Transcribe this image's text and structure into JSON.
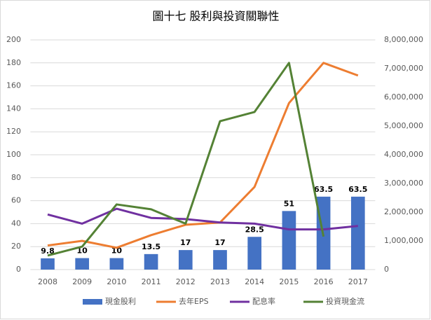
{
  "chart_data": {
    "type": "bar_line",
    "title": "圖十七  股利與投資關聯性",
    "categories": [
      "2008",
      "2009",
      "2010",
      "2011",
      "2012",
      "2013",
      "2014",
      "2015",
      "2016",
      "2017"
    ],
    "series": [
      {
        "name": "現金股利",
        "type": "bar",
        "color": "#4472c4",
        "values": [
          9.8,
          10,
          10,
          13.5,
          17,
          17,
          28.5,
          51,
          63.5,
          63.5
        ]
      },
      {
        "name": "去年EPS",
        "type": "line",
        "color": "#ed7d31",
        "values": [
          21,
          25,
          19,
          30,
          39,
          41,
          72,
          145,
          180,
          169
        ]
      },
      {
        "name": "配息率",
        "type": "line",
        "color": "#7030a0",
        "values": [
          48,
          40,
          53,
          45,
          44,
          41,
          40,
          35,
          35,
          38
        ]
      },
      {
        "name": "投資現金流",
        "type": "line",
        "axis": "y2",
        "color": "#548235",
        "values": [
          490000,
          800000,
          2270000,
          2100000,
          1600000,
          5170000,
          5490000,
          7200000,
          1150000,
          null
        ]
      }
    ],
    "ylim": [
      0,
      200
    ],
    "yticks": [
      0,
      20,
      40,
      60,
      80,
      100,
      120,
      140,
      160,
      180,
      200
    ],
    "y2lim": [
      0,
      8000000
    ],
    "y2ticks": [
      0,
      {
        "value": 1000000,
        "label": "1,000,000"
      },
      {
        "value": 2000000,
        "label": "2,000,000"
      },
      {
        "value": 3000000,
        "label": "3,000,000"
      },
      {
        "value": 4000000,
        "label": "4,000,000"
      },
      {
        "value": 5000000,
        "label": "5,000,000"
      },
      {
        "value": 6000000,
        "label": "6,000,000"
      },
      {
        "value": 7000000,
        "label": "7,000,000"
      },
      {
        "value": 8000000,
        "label": "8,000,000"
      }
    ],
    "grid": true,
    "legend": "bottom"
  }
}
